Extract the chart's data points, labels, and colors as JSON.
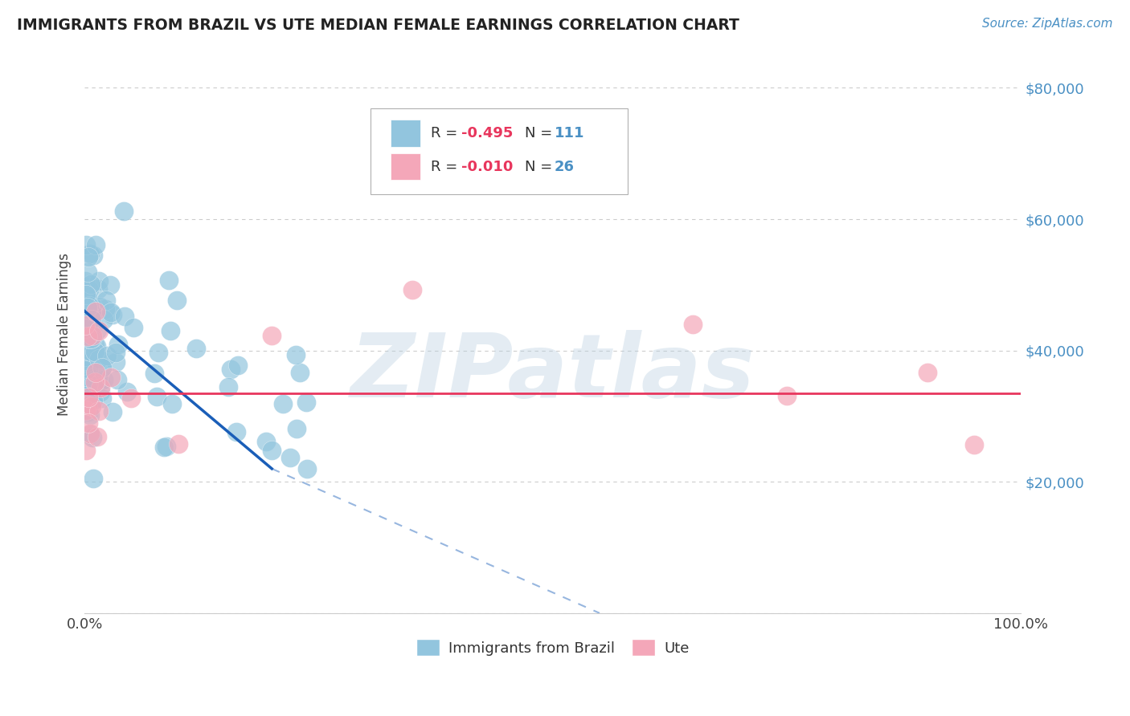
{
  "title": "IMMIGRANTS FROM BRAZIL VS UTE MEDIAN FEMALE EARNINGS CORRELATION CHART",
  "source": "Source: ZipAtlas.com",
  "ylabel": "Median Female Earnings",
  "xlim": [
    0,
    100
  ],
  "ylim": [
    0,
    85000
  ],
  "yticks": [
    0,
    20000,
    40000,
    60000,
    80000
  ],
  "ytick_labels": [
    "",
    "$20,000",
    "$40,000",
    "$60,000",
    "$80,000"
  ],
  "watermark": "ZIPatlas",
  "series1_color": "#92c5de",
  "series2_color": "#f4a7b9",
  "trendline1_color": "#1a5eb8",
  "trendline2_color": "#e8365d",
  "background_color": "#ffffff",
  "grid_color": "#cccccc",
  "title_color": "#222222",
  "source_color": "#4a90c4",
  "ytick_color": "#4a90c4",
  "xtick_color": "#444444",
  "ylabel_color": "#444444",
  "legend_r_color": "#e8365d",
  "legend_n_color": "#4a90c4",
  "legend_text_color": "#333333",
  "brazil_trend_x0": 0,
  "brazil_trend_y0": 46000,
  "brazil_trend_x1": 20,
  "brazil_trend_y1": 22000,
  "brazil_dash_x0": 20,
  "brazil_dash_y0": 22000,
  "brazil_dash_x1": 55,
  "brazil_dash_y1": 0,
  "ute_trend_y": 33500,
  "seed": 77
}
